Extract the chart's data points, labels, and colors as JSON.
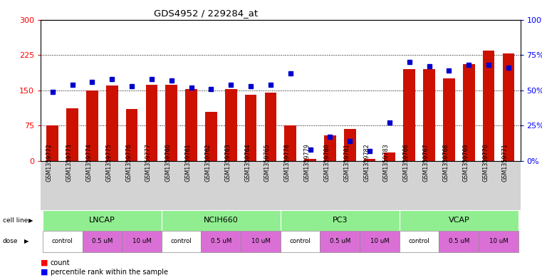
{
  "title": "GDS4952 / 229284_at",
  "samples": [
    "GSM1359772",
    "GSM1359773",
    "GSM1359774",
    "GSM1359775",
    "GSM1359776",
    "GSM1359777",
    "GSM1359760",
    "GSM1359761",
    "GSM1359762",
    "GSM1359763",
    "GSM1359764",
    "GSM1359765",
    "GSM1359778",
    "GSM1359779",
    "GSM1359780",
    "GSM1359781",
    "GSM1359782",
    "GSM1359783",
    "GSM1359766",
    "GSM1359767",
    "GSM1359768",
    "GSM1359769",
    "GSM1359770",
    "GSM1359771"
  ],
  "counts": [
    75,
    112,
    150,
    160,
    110,
    162,
    162,
    152,
    105,
    152,
    140,
    145,
    75,
    5,
    55,
    68,
    5,
    18,
    195,
    195,
    175,
    205,
    235,
    228
  ],
  "percentiles": [
    49,
    54,
    56,
    58,
    53,
    58,
    57,
    52,
    51,
    54,
    53,
    54,
    62,
    8,
    17,
    14,
    7,
    27,
    70,
    67,
    64,
    68,
    68,
    66
  ],
  "bar_color": "#cc1100",
  "dot_color": "#0000cc",
  "ylim_left": [
    0,
    300
  ],
  "ylim_right": [
    0,
    100
  ],
  "yticks_left": [
    0,
    75,
    150,
    225,
    300
  ],
  "yticks_right": [
    0,
    25,
    50,
    75,
    100
  ],
  "ytick_labels_right": [
    "0%",
    "25%",
    "50%",
    "75%",
    "100%"
  ],
  "cell_line_color": "#90ee90",
  "dose_color_control": "#ffffff",
  "dose_color_half": "#da70d6",
  "dose_color_10": "#da70d6",
  "tick_bg_color": "#d3d3d3",
  "plot_bg": "#ffffff",
  "grid_lines": [
    75,
    150,
    225
  ],
  "cell_line_names": [
    "LNCAP",
    "NCIH660",
    "PC3",
    "VCAP"
  ],
  "cell_line_spans": [
    [
      0,
      5
    ],
    [
      6,
      11
    ],
    [
      12,
      17
    ],
    [
      18,
      23
    ]
  ],
  "dose_blocks": [
    [
      0,
      1,
      "control"
    ],
    [
      2,
      3,
      "0.5 uM"
    ],
    [
      4,
      5,
      "10 uM"
    ],
    [
      6,
      7,
      "control"
    ],
    [
      8,
      9,
      "0.5 uM"
    ],
    [
      10,
      11,
      "10 uM"
    ],
    [
      12,
      13,
      "control"
    ],
    [
      14,
      15,
      "0.5 uM"
    ],
    [
      16,
      17,
      "10 uM"
    ],
    [
      18,
      19,
      "control"
    ],
    [
      20,
      21,
      "0.5 uM"
    ],
    [
      22,
      23,
      "10 uM"
    ]
  ]
}
